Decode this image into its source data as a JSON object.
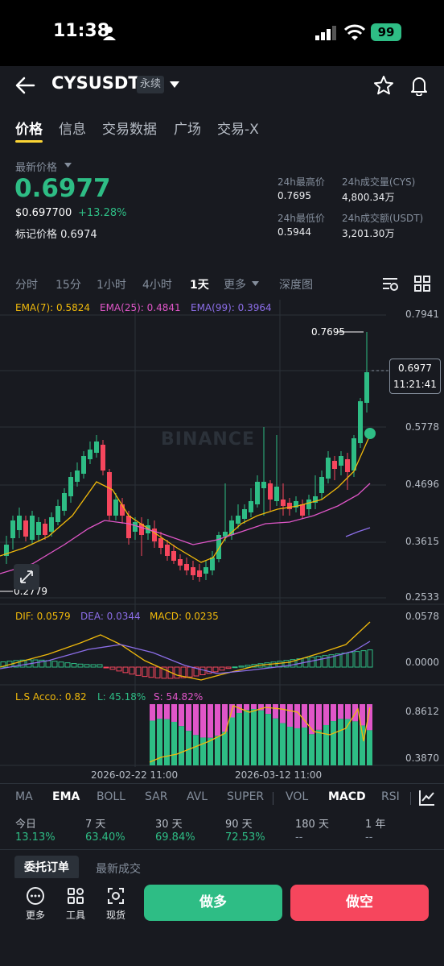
{
  "status_bar": {
    "time": "11:38",
    "battery": "99"
  },
  "header": {
    "symbol": "CYSUSDT",
    "contract_tag": "永续"
  },
  "tabs": [
    {
      "label": "价格",
      "active": true
    },
    {
      "label": "信息"
    },
    {
      "label": "交易数据"
    },
    {
      "label": "广场"
    },
    {
      "label": "交易-X"
    }
  ],
  "price": {
    "latest_label": "最新价格",
    "last_price": "0.6977",
    "usd_price": "$0.697700",
    "change_pct": "+13.28%",
    "mark_price": "标记价格 0.6974"
  },
  "stats": {
    "high_label": "24h最高价",
    "high": "0.7695",
    "low_label": "24h最低价",
    "low": "0.5944",
    "vol_label": "24h成交量(CYS)",
    "vol": "4,800.34万",
    "turnover_label": "24h成交额(USDT)",
    "turnover": "3,201.30万"
  },
  "intervals": [
    "分时",
    "15分",
    "1小时",
    "4小时",
    "1天",
    "更多",
    "深度图"
  ],
  "active_interval": "1天",
  "legends": {
    "ema7": "EMA(7): 0.5824",
    "ema25": "EMA(25): 0.4841",
    "ema99": "EMA(99): 0.3964",
    "dif": "DIF: 0.0579",
    "dea": "DEA: 0.0344",
    "macd": "MACD: 0.0235",
    "ls": "L.S Acco.: 0.82",
    "ls_l": "L: 45.18%",
    "ls_s": "S: 54.82%"
  },
  "axis": {
    "price_ticks": [
      "0.7941",
      "0.5778",
      "0.4696",
      "0.3615",
      "0.2533"
    ],
    "macd_ticks": [
      "0.0578",
      "0.0000"
    ],
    "ls_ticks": [
      "0.8612",
      "0.3870"
    ],
    "dates": [
      "2026-02-22 11:00",
      "2026-03-12 11:00"
    ],
    "current_price": "0.6977",
    "countdown": "11:21:41",
    "high_marker": "0.7695",
    "low_marker": "0.2779",
    "watermark": "BINANCE"
  },
  "indicator_tabs": [
    "MA",
    "EMA",
    "BOLL",
    "SAR",
    "AVL",
    "SUPER",
    "VOL",
    "MACD",
    "RSI"
  ],
  "active_indicators": [
    "EMA",
    "MACD"
  ],
  "performance": [
    {
      "label": "今日",
      "value": "13.13%"
    },
    {
      "label": "7 天",
      "value": "63.40%"
    },
    {
      "label": "30 天",
      "value": "69.84%"
    },
    {
      "label": "90 天",
      "value": "72.53%"
    },
    {
      "label": "180 天",
      "value": "--"
    },
    {
      "label": "1 年",
      "value": "--"
    }
  ],
  "orders": {
    "active_tab": "委托订单",
    "tab2": "最新成交"
  },
  "bottom": {
    "more": "更多",
    "tools": "工具",
    "spot": "现货",
    "long": "做多",
    "short": "做空"
  },
  "colors": {
    "up": "#2ebd85",
    "down": "#f6465d",
    "ema7": "#f0b90b",
    "ema25": "#e056c8",
    "ema99": "#8c6ee8",
    "accent": "#fcd535"
  }
}
